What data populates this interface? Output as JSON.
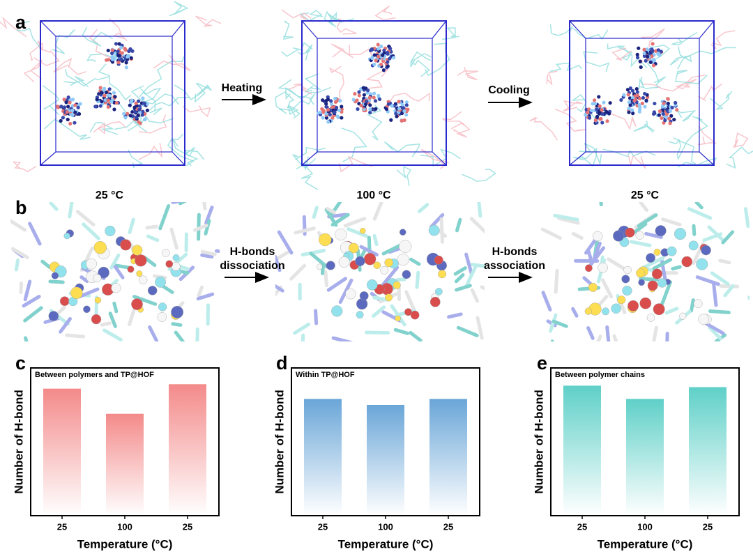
{
  "panel_labels": [
    "a",
    "b",
    "c",
    "d",
    "e"
  ],
  "row_a": {
    "arrows": [
      "Heating",
      "Cooling"
    ],
    "temperatures": [
      "25 °C",
      "100 °C",
      "25 °C"
    ]
  },
  "row_b": {
    "arrows": [
      [
        "H-bonds",
        "dissociation"
      ],
      [
        "H-bonds",
        "association"
      ]
    ]
  },
  "chart_data": [
    {
      "type": "bar",
      "title": "Between polymers and TP@HOF",
      "x_label": "Temperature (°C)",
      "y_label": "Number of H-bond",
      "categories": [
        "25",
        "100",
        "25"
      ],
      "values": [
        86,
        69,
        89
      ],
      "color": "#f48a8a",
      "ylim": [
        0,
        100
      ]
    },
    {
      "type": "bar",
      "title": "Within TP@HOF",
      "x_label": "Temperature (°C)",
      "y_label": "Number of H-bond",
      "categories": [
        "25",
        "100",
        "25"
      ],
      "values": [
        79,
        75,
        79
      ],
      "color": "#6aa6d8",
      "ylim": [
        0,
        100
      ]
    },
    {
      "type": "bar",
      "title": "Between polymer chains",
      "x_label": "Temperature (°C)",
      "y_label": "Number of H-bond",
      "categories": [
        "25",
        "100",
        "25"
      ],
      "values": [
        88,
        79,
        87
      ],
      "color": "#5fd0c8",
      "ylim": [
        0,
        100
      ]
    }
  ]
}
